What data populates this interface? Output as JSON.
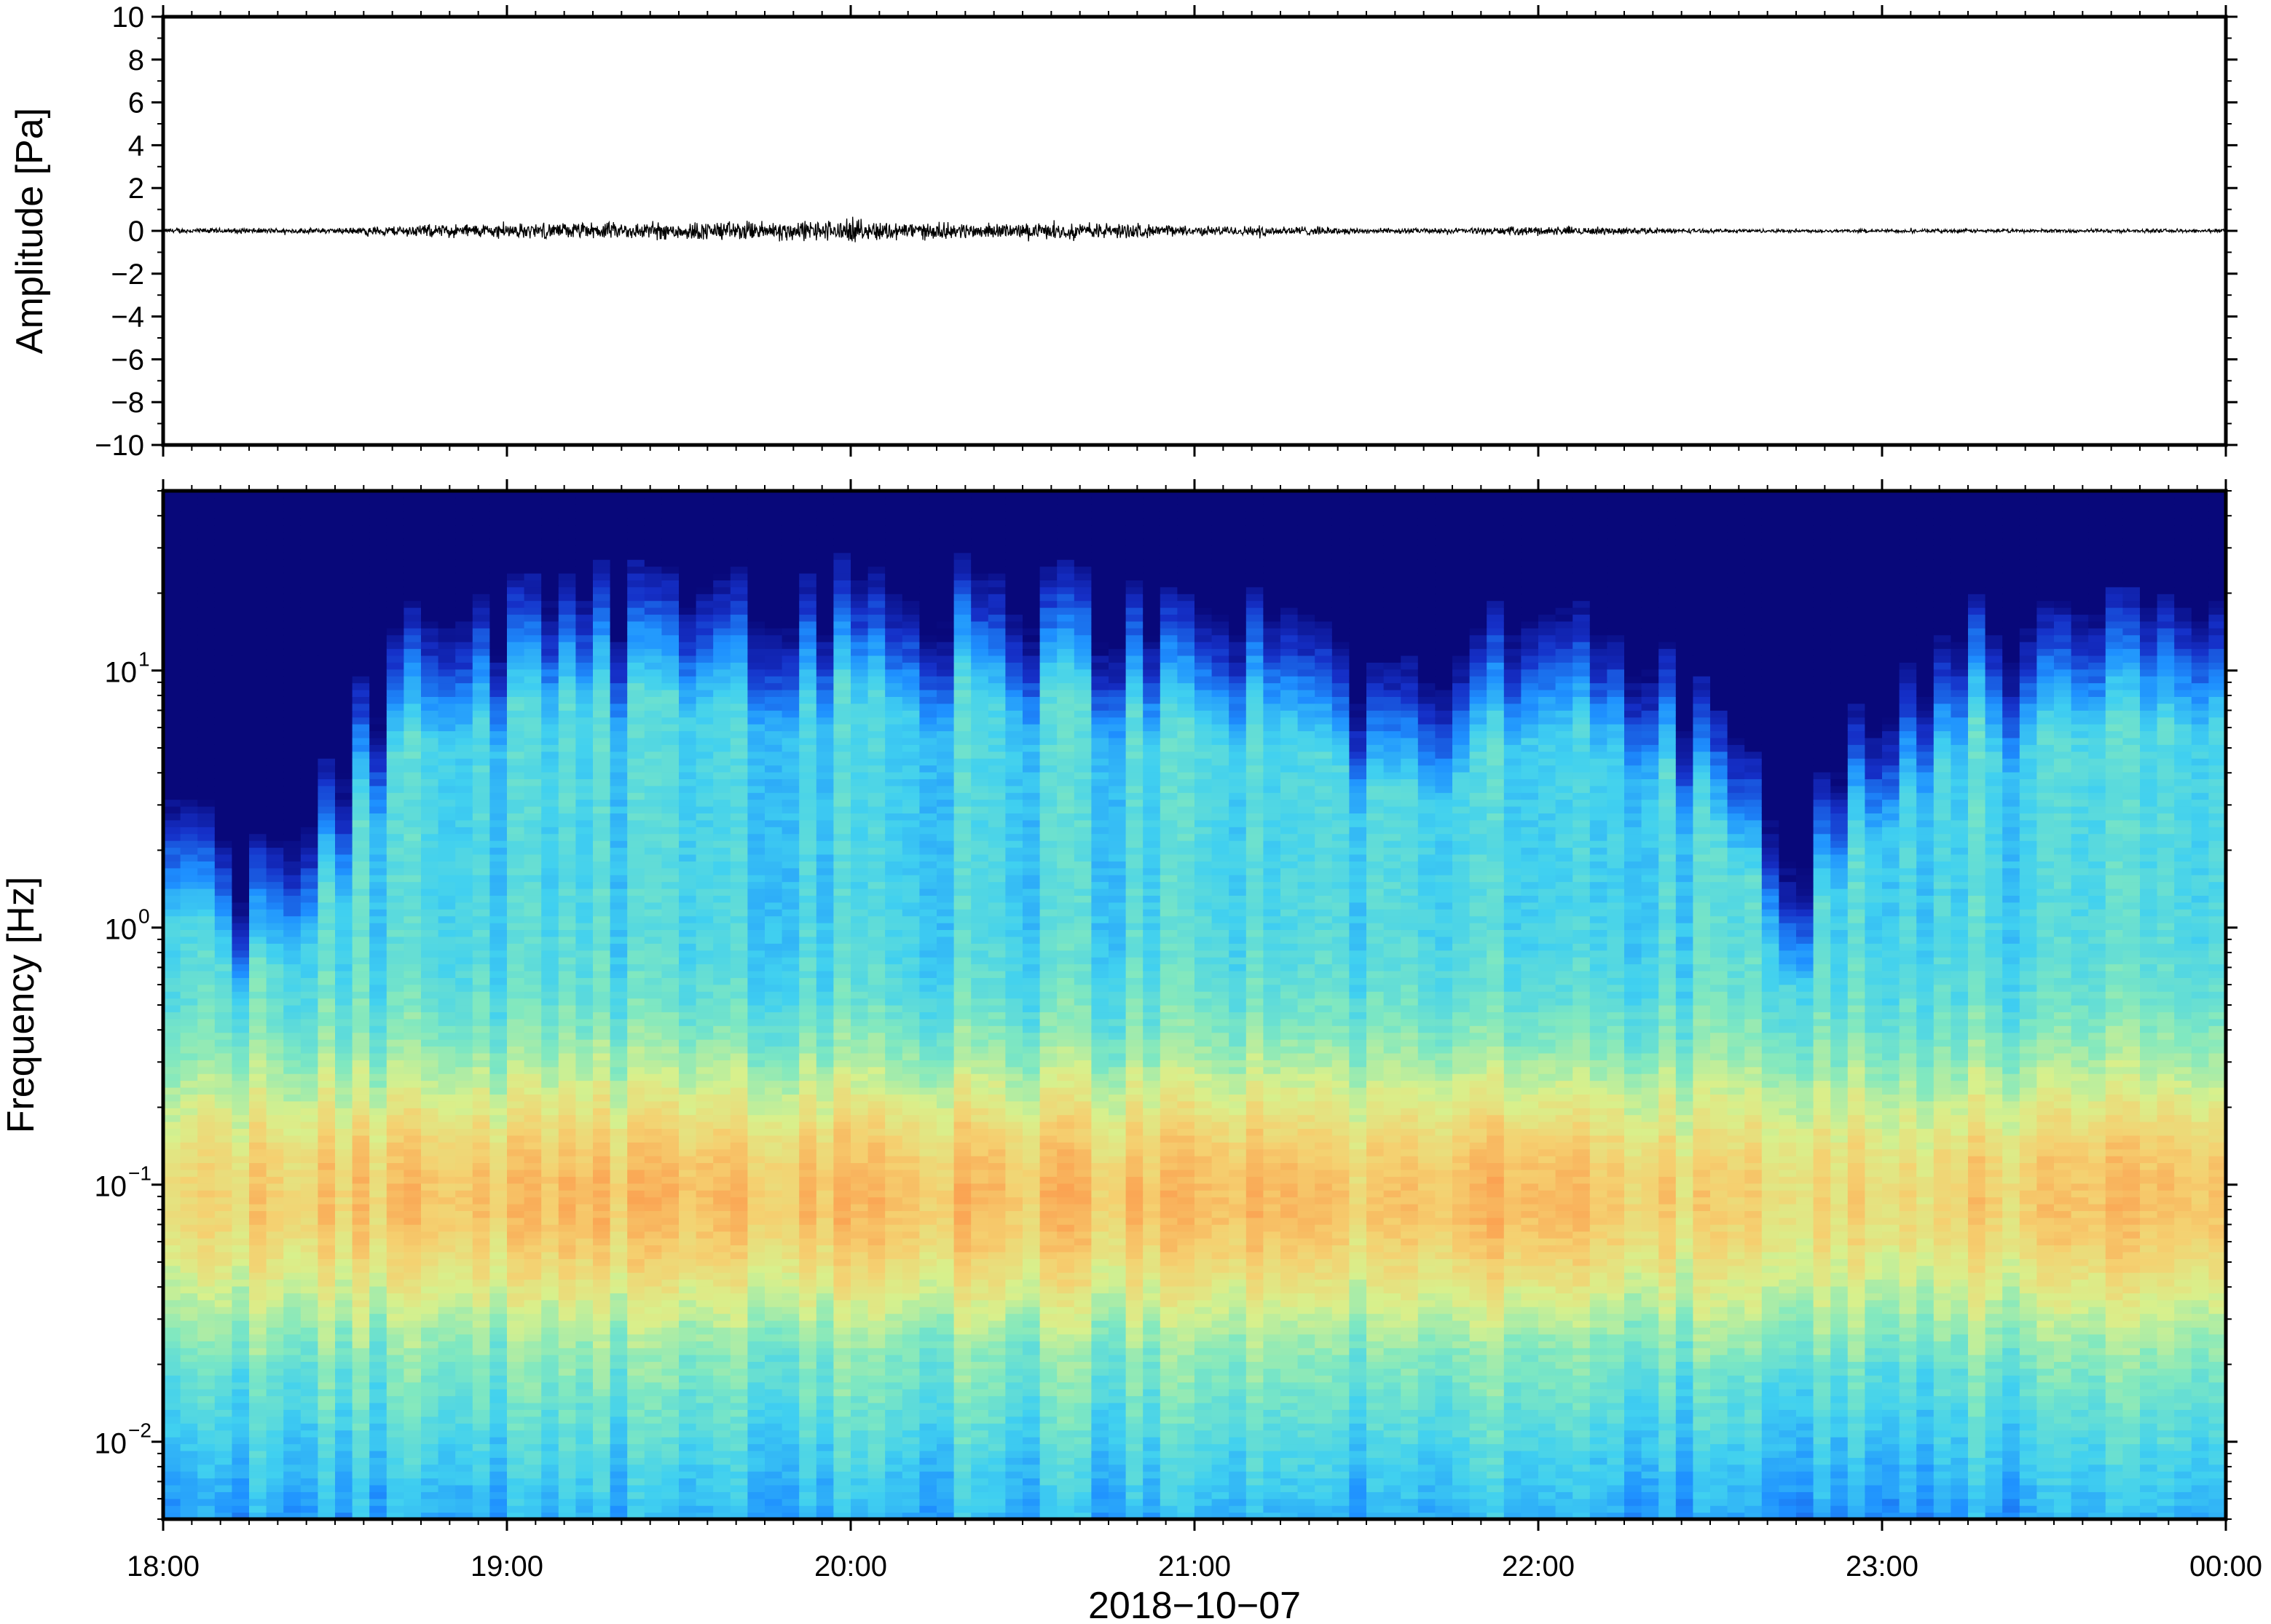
{
  "chart_data": [
    {
      "type": "line",
      "panel": "waveform",
      "ylabel": "Amplitude [Pa]",
      "ylim": [
        -10,
        10
      ],
      "yticks": [
        -10,
        -8,
        -6,
        -4,
        -2,
        0,
        2,
        4,
        6,
        8,
        10
      ],
      "ytick_labels": [
        "−10",
        "−8",
        "−6",
        "−4",
        "−2",
        "0",
        "2",
        "4",
        "6",
        "8",
        "10"
      ],
      "x_range": [
        "2018-10-07 18:00",
        "2018-10-08 00:00"
      ],
      "amplitude_envelope": {
        "hours": [
          18.0,
          18.5,
          18.75,
          19.0,
          19.25,
          19.5,
          19.75,
          20.0,
          20.25,
          20.5,
          20.75,
          21.0,
          21.25,
          21.5,
          21.75,
          22.0,
          22.25,
          22.5,
          23.0,
          23.5,
          24.0
        ],
        "peak_pa": [
          0.15,
          0.15,
          0.35,
          0.4,
          0.45,
          0.5,
          0.55,
          0.6,
          0.45,
          0.4,
          0.45,
          0.25,
          0.3,
          0.15,
          0.15,
          0.25,
          0.2,
          0.1,
          0.1,
          0.1,
          0.1
        ]
      }
    },
    {
      "type": "heatmap",
      "panel": "spectrogram",
      "xlabel": "2018−10−07",
      "ylabel": "Frequency [Hz]",
      "yscale": "log",
      "ylim_hz": [
        0.005,
        50
      ],
      "x_range": [
        "2018-10-07 18:00",
        "2018-10-08 00:00"
      ],
      "xtick_labels": [
        "18:00",
        "19:00",
        "20:00",
        "21:00",
        "22:00",
        "23:00",
        "00:00"
      ],
      "ytick_values": [
        0.01,
        0.1,
        1,
        10
      ],
      "ytick_labels": [
        {
          "base": "10",
          "exp": "−2"
        },
        {
          "base": "10",
          "exp": "−1"
        },
        {
          "base": "10",
          "exp": "0"
        },
        {
          "base": "10",
          "exp": "1"
        }
      ],
      "colormap": "jet",
      "colormap_stops": [
        "#08087a",
        "#1530c8",
        "#1e90ff",
        "#40d0f0",
        "#80e8c0",
        "#d8f08c",
        "#f5d070",
        "#fba050"
      ],
      "features": {
        "upper_cutoff_hz": [
          [
            18.0,
            3
          ],
          [
            18.25,
            1.2
          ],
          [
            18.5,
            3
          ],
          [
            18.75,
            12
          ],
          [
            19.0,
            15
          ],
          [
            19.5,
            17
          ],
          [
            20.0,
            18
          ],
          [
            20.5,
            17
          ],
          [
            20.75,
            15
          ],
          [
            21.0,
            12
          ],
          [
            21.25,
            14
          ],
          [
            21.5,
            7
          ],
          [
            21.75,
            8
          ],
          [
            22.0,
            15
          ],
          [
            22.25,
            12
          ],
          [
            22.5,
            5
          ],
          [
            22.75,
            1.2
          ],
          [
            23.0,
            6
          ],
          [
            23.25,
            12
          ],
          [
            23.5,
            12
          ],
          [
            24.0,
            14
          ]
        ],
        "energy_peak_band_hz": [
          0.05,
          0.2
        ],
        "energy_peak_intensity": [
          [
            18.0,
            0.4
          ],
          [
            18.5,
            0.6
          ],
          [
            19.0,
            0.65
          ],
          [
            19.5,
            0.7
          ],
          [
            20.0,
            0.75
          ],
          [
            20.5,
            0.7
          ],
          [
            21.0,
            0.65
          ],
          [
            21.25,
            0.75
          ],
          [
            21.5,
            0.55
          ],
          [
            22.0,
            0.8
          ],
          [
            22.25,
            0.65
          ],
          [
            22.5,
            0.45
          ],
          [
            23.0,
            0.45
          ],
          [
            23.5,
            0.6
          ],
          [
            24.0,
            0.65
          ]
        ]
      }
    }
  ]
}
